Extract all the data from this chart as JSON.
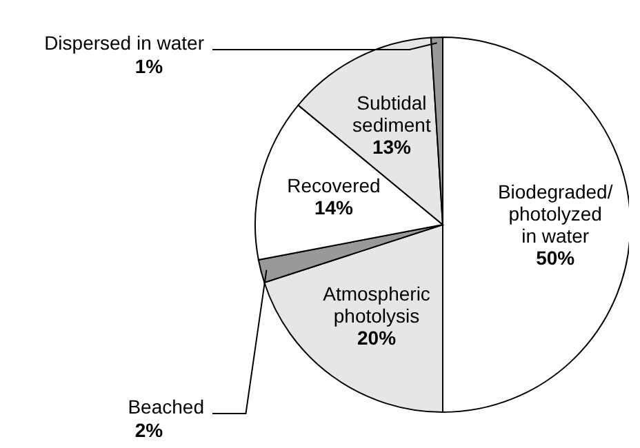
{
  "chart_data": {
    "type": "pie",
    "categories": [
      "Biodegraded/\nphotolyzed\nin water",
      "Atmospheric\nphotolysis",
      "Beached",
      "Recovered",
      "Subtidal\nsediment",
      "Dispersed in water"
    ],
    "values": [
      50,
      20,
      2,
      14,
      13,
      1
    ],
    "colors": [
      "#ffffff",
      "#e6e6e6",
      "#999999",
      "#ffffff",
      "#e6e6e6",
      "#999999"
    ],
    "value_labels": [
      "50%",
      "20%",
      "2%",
      "14%",
      "13%",
      "1%"
    ]
  }
}
